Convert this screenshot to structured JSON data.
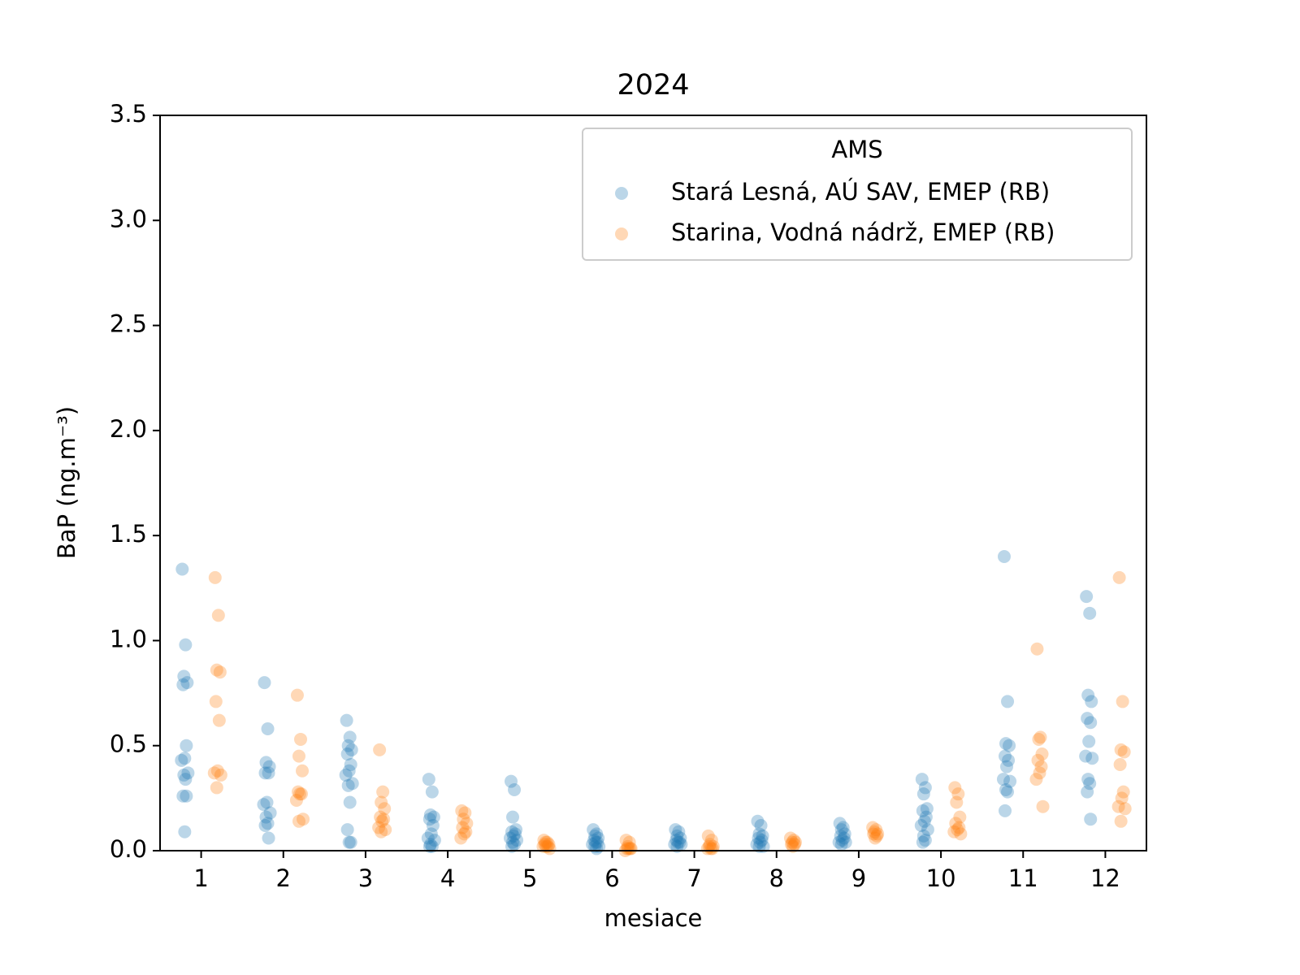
{
  "chart_data": {
    "type": "scatter",
    "title": "2024",
    "xlabel": "mesiace",
    "ylabel": "BaP   (ng.m⁻³)",
    "legend_title": "AMS",
    "legend": "upper right",
    "grid": false,
    "alpha": 0.3,
    "xlim": [
      0.5,
      12.5
    ],
    "xticks": [
      1,
      2,
      3,
      4,
      5,
      6,
      7,
      8,
      9,
      10,
      11,
      12
    ],
    "ylim": [
      0,
      3.5
    ],
    "yticks": [
      {
        "value": 0,
        "label": "0.0"
      },
      0.5,
      {
        "value": 1,
        "label": "1.0"
      },
      1.5,
      {
        "value": 2,
        "label": "2.0"
      },
      2.5,
      {
        "value": 3,
        "label": "3.0"
      },
      3.5
    ],
    "series": [
      {
        "name": "Stará Lesná, AÚ SAV, EMEP (RB)",
        "color": "#1f77b4",
        "x": [
          0.77,
          0.81,
          0.79,
          0.83,
          0.78,
          0.82,
          0.8,
          0.76,
          0.84,
          0.79,
          0.81,
          0.78,
          0.82,
          0.8,
          1.77,
          1.81,
          1.79,
          1.83,
          1.78,
          1.82,
          1.8,
          1.76,
          1.84,
          1.79,
          1.81,
          1.78,
          1.82,
          2.77,
          2.81,
          2.79,
          2.83,
          2.78,
          2.82,
          2.8,
          2.76,
          2.84,
          2.79,
          2.81,
          2.78,
          2.82,
          2.8,
          3.77,
          3.81,
          3.79,
          3.83,
          3.78,
          3.82,
          3.8,
          3.76,
          3.84,
          3.79,
          3.81,
          3.78,
          4.77,
          4.81,
          4.79,
          4.83,
          4.78,
          4.82,
          4.8,
          4.76,
          4.84,
          4.79,
          4.81,
          4.78,
          5.77,
          5.81,
          5.79,
          5.83,
          5.78,
          5.82,
          5.8,
          5.76,
          5.84,
          5.79,
          5.81,
          6.77,
          6.81,
          6.79,
          6.83,
          6.78,
          6.82,
          6.8,
          6.76,
          6.84,
          6.79,
          7.77,
          7.81,
          7.79,
          7.83,
          7.78,
          7.82,
          7.8,
          7.76,
          7.84,
          7.79,
          8.77,
          8.81,
          8.79,
          8.83,
          8.78,
          8.82,
          8.8,
          8.76,
          8.84,
          8.79,
          9.77,
          9.81,
          9.79,
          9.83,
          9.78,
          9.82,
          9.8,
          9.76,
          9.84,
          9.79,
          9.81,
          9.78,
          10.77,
          10.81,
          10.79,
          10.83,
          10.78,
          10.82,
          10.8,
          10.76,
          10.84,
          10.79,
          10.81,
          10.78,
          11.77,
          11.81,
          11.79,
          11.83,
          11.78,
          11.82,
          11.8,
          11.76,
          11.84,
          11.79,
          11.81,
          11.78,
          11.82
        ],
        "values": [
          1.34,
          0.98,
          0.83,
          0.8,
          0.79,
          0.5,
          0.44,
          0.43,
          0.37,
          0.36,
          0.34,
          0.26,
          0.26,
          0.09,
          0.8,
          0.58,
          0.42,
          0.4,
          0.37,
          0.37,
          0.23,
          0.22,
          0.18,
          0.16,
          0.13,
          0.12,
          0.06,
          0.62,
          0.54,
          0.5,
          0.48,
          0.46,
          0.41,
          0.38,
          0.36,
          0.32,
          0.31,
          0.23,
          0.1,
          0.04,
          0.04,
          0.34,
          0.28,
          0.17,
          0.16,
          0.15,
          0.12,
          0.08,
          0.06,
          0.05,
          0.03,
          0.02,
          0.02,
          0.33,
          0.29,
          0.16,
          0.1,
          0.09,
          0.08,
          0.07,
          0.06,
          0.05,
          0.04,
          0.03,
          0.02,
          0.1,
          0.08,
          0.07,
          0.06,
          0.05,
          0.04,
          0.04,
          0.03,
          0.02,
          0.02,
          0.01,
          0.1,
          0.09,
          0.07,
          0.06,
          0.05,
          0.04,
          0.04,
          0.03,
          0.03,
          0.02,
          0.14,
          0.12,
          0.08,
          0.07,
          0.06,
          0.05,
          0.04,
          0.03,
          0.02,
          0.02,
          0.13,
          0.11,
          0.1,
          0.08,
          0.07,
          0.06,
          0.05,
          0.04,
          0.04,
          0.03,
          0.34,
          0.3,
          0.27,
          0.2,
          0.19,
          0.16,
          0.14,
          0.12,
          0.1,
          0.07,
          0.05,
          0.04,
          1.4,
          0.71,
          0.51,
          0.5,
          0.45,
          0.43,
          0.4,
          0.34,
          0.33,
          0.29,
          0.28,
          0.19,
          1.21,
          1.13,
          0.74,
          0.71,
          0.63,
          0.61,
          0.52,
          0.45,
          0.44,
          0.34,
          0.32,
          0.28,
          0.15
        ]
      },
      {
        "name": "Starina, Vodná nádrž, EMEP (RB)",
        "color": "#ff7f0e",
        "x": [
          1.17,
          1.21,
          1.19,
          1.23,
          1.18,
          1.22,
          1.2,
          1.16,
          1.24,
          1.19,
          2.17,
          2.21,
          2.19,
          2.23,
          2.18,
          2.22,
          2.2,
          2.16,
          2.24,
          2.19,
          3.17,
          3.21,
          3.19,
          3.23,
          3.18,
          3.22,
          3.2,
          3.16,
          3.24,
          3.19,
          4.17,
          4.21,
          4.19,
          4.23,
          4.18,
          4.22,
          4.2,
          4.16,
          5.17,
          5.21,
          5.19,
          5.23,
          5.18,
          5.22,
          5.2,
          5.16,
          5.24,
          6.17,
          6.21,
          6.19,
          6.23,
          6.18,
          6.22,
          6.2,
          6.16,
          7.17,
          7.21,
          7.19,
          7.23,
          7.18,
          7.22,
          7.2,
          7.16,
          8.17,
          8.21,
          8.19,
          8.23,
          8.18,
          8.22,
          8.2,
          9.17,
          9.21,
          9.19,
          9.23,
          9.18,
          9.22,
          9.2,
          10.17,
          10.21,
          10.19,
          10.23,
          10.18,
          10.22,
          10.2,
          10.16,
          10.24,
          11.17,
          11.21,
          11.19,
          11.23,
          11.18,
          11.22,
          11.2,
          11.16,
          11.24,
          12.17,
          12.21,
          12.19,
          12.23,
          12.18,
          12.22,
          12.2,
          12.16,
          12.24,
          12.19
        ],
        "values": [
          1.3,
          1.12,
          0.86,
          0.85,
          0.71,
          0.62,
          0.38,
          0.37,
          0.36,
          0.3,
          0.74,
          0.53,
          0.45,
          0.38,
          0.28,
          0.27,
          0.27,
          0.24,
          0.15,
          0.14,
          0.48,
          0.28,
          0.23,
          0.2,
          0.16,
          0.15,
          0.14,
          0.11,
          0.1,
          0.09,
          0.19,
          0.18,
          0.15,
          0.13,
          0.11,
          0.09,
          0.08,
          0.06,
          0.05,
          0.04,
          0.04,
          0.03,
          0.03,
          0.02,
          0.02,
          0.02,
          0.01,
          0.05,
          0.04,
          0.02,
          0.01,
          0.01,
          0.01,
          0.01,
          0,
          0.07,
          0.05,
          0.03,
          0.02,
          0.02,
          0.01,
          0.01,
          0.01,
          0.06,
          0.05,
          0.04,
          0.04,
          0.03,
          0.03,
          0.02,
          0.11,
          0.1,
          0.09,
          0.08,
          0.08,
          0.07,
          0.06,
          0.3,
          0.27,
          0.23,
          0.16,
          0.13,
          0.11,
          0.1,
          0.09,
          0.08,
          0.96,
          0.54,
          0.53,
          0.46,
          0.43,
          0.4,
          0.37,
          0.34,
          0.21,
          1.3,
          0.71,
          0.48,
          0.47,
          0.41,
          0.28,
          0.25,
          0.21,
          0.2,
          0.14
        ]
      }
    ]
  }
}
